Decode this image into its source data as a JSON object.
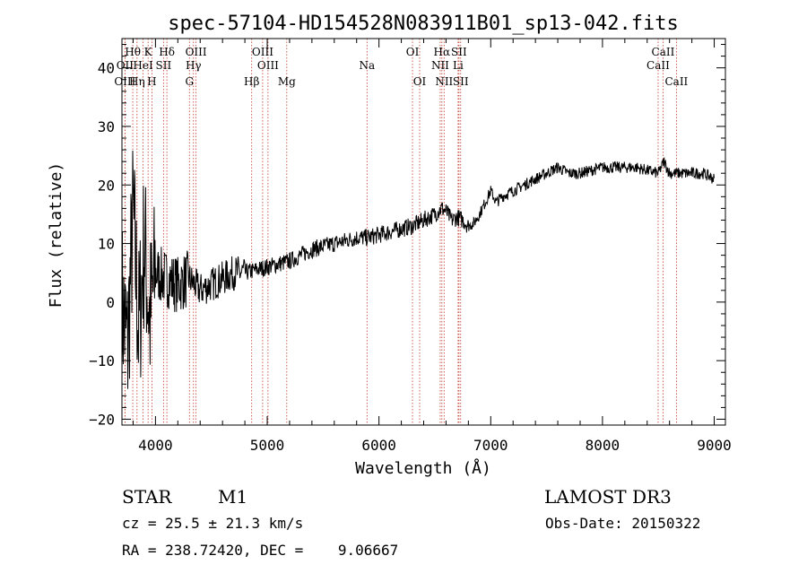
{
  "chart_data": {
    "type": "line",
    "title": "spec-57104-HD154528N083911B01_sp13-042.fits",
    "xlabel": "Wavelength (Å)",
    "ylabel": "Flux (relative)",
    "xlim": [
      3700,
      9100
    ],
    "ylim": [
      -21,
      45
    ],
    "xticks": [
      4000,
      5000,
      6000,
      7000,
      8000,
      9000
    ],
    "yticks": [
      -20,
      -10,
      0,
      10,
      20,
      30,
      40
    ],
    "grid": false,
    "series": [
      {
        "name": "flux",
        "x": [
          3700,
          3750,
          3800,
          3850,
          3900,
          3950,
          4000,
          4100,
          4200,
          4300,
          4400,
          4500,
          4600,
          4700,
          4800,
          4900,
          5000,
          5100,
          5200,
          5300,
          5400,
          5500,
          5600,
          5700,
          5800,
          5900,
          6000,
          6100,
          6200,
          6300,
          6400,
          6500,
          6560,
          6600,
          6650,
          6700,
          6750,
          6800,
          6850,
          6900,
          6950,
          7000,
          7050,
          7100,
          7200,
          7300,
          7400,
          7500,
          7600,
          7700,
          7800,
          7900,
          8000,
          8100,
          8200,
          8300,
          8400,
          8500,
          8550,
          8600,
          8700,
          8800,
          8900,
          9000
        ],
        "y": [
          0,
          -8,
          15,
          -5,
          10,
          -3,
          5,
          4,
          3,
          4,
          2,
          3,
          4,
          5,
          5,
          5.5,
          6,
          6.5,
          7,
          8,
          9,
          9.5,
          10,
          10.5,
          11,
          11,
          11.5,
          12,
          12.5,
          13,
          14,
          15,
          16,
          15.5,
          14,
          14.5,
          14,
          13,
          13.5,
          15,
          17,
          19,
          17,
          18,
          19,
          20,
          21,
          22,
          23,
          22,
          22,
          22.5,
          23,
          23,
          23,
          23,
          22.5,
          22,
          24,
          22,
          22,
          22,
          22,
          21
        ]
      }
    ],
    "lines": [
      {
        "label": "Hθ",
        "wl": 3797,
        "row": 1
      },
      {
        "label": "OII",
        "wl": 3727,
        "row": 2
      },
      {
        "label": "OIII",
        "wl": 3727,
        "row": 3
      },
      {
        "label": "K",
        "wl": 3934,
        "row": 1
      },
      {
        "label": "HeI",
        "wl": 3889,
        "row": 2
      },
      {
        "label": "Hη",
        "wl": 3835,
        "row": 3
      },
      {
        "label": "Hδ",
        "wl": 4102,
        "row": 1
      },
      {
        "label": "SII",
        "wl": 4072,
        "row": 2
      },
      {
        "label": "H",
        "wl": 3968,
        "row": 3
      },
      {
        "label": "OIII",
        "wl": 4363,
        "row": 1
      },
      {
        "label": "Hγ",
        "wl": 4340,
        "row": 2
      },
      {
        "label": "G",
        "wl": 4304,
        "row": 3
      },
      {
        "label": "Hβ",
        "wl": 4861,
        "row": 3
      },
      {
        "label": "OIII",
        "wl": 4959,
        "row": 1
      },
      {
        "label": "OIII",
        "wl": 5007,
        "row": 2
      },
      {
        "label": "Mg",
        "wl": 5175,
        "row": 3
      },
      {
        "label": "Na",
        "wl": 5893,
        "row": 2
      },
      {
        "label": "OI",
        "wl": 6300,
        "row": 1
      },
      {
        "label": "OI",
        "wl": 6364,
        "row": 3
      },
      {
        "label": "Hα",
        "wl": 6563,
        "row": 1
      },
      {
        "label": "NII",
        "wl": 6548,
        "row": 2
      },
      {
        "label": "NII",
        "wl": 6583,
        "row": 3
      },
      {
        "label": "SII",
        "wl": 6716,
        "row": 1
      },
      {
        "label": "Li",
        "wl": 6708,
        "row": 2
      },
      {
        "label": "SII",
        "wl": 6731,
        "row": 3
      },
      {
        "label": "CaII",
        "wl": 8542,
        "row": 1
      },
      {
        "label": "CaII",
        "wl": 8498,
        "row": 2
      },
      {
        "label": "CaII",
        "wl": 8662,
        "row": 3
      }
    ]
  },
  "info": {
    "class_label": "STAR",
    "subclass": "M1",
    "survey": "LAMOST DR3",
    "cz": "cz = 25.5 ± 21.3 km/s",
    "obs_date": "Obs-Date: 20150322",
    "coords": "RA = 238.72420, DEC =    9.06667"
  },
  "colors": {
    "line": "#000000",
    "marker": "#c0392b",
    "axis": "#000000"
  }
}
